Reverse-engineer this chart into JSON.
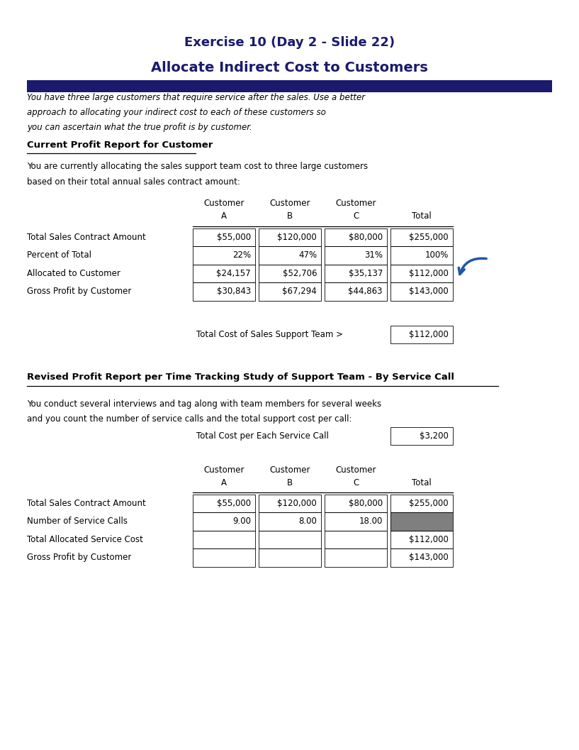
{
  "title_line1": "Exercise 10 (Day 2 - Slide 22)",
  "title_line2": "Allocate Indirect Cost to Customers",
  "title_color": "#1a1a6e",
  "blue_bar_color": "#1a1a6e",
  "intro_text_lines": [
    "You have three large customers that require service after the sales. Use a better",
    "approach to allocating your indirect cost to each of these customers so",
    "you can ascertain what the true profit is by customer."
  ],
  "section1_header": "Current Profit Report for Customer",
  "section1_body_lines": [
    "You are currently allocating the sales support team cost to three large customers",
    "based on their total annual sales contract amount:"
  ],
  "col_headers_top": [
    "Customer",
    "Customer",
    "Customer",
    ""
  ],
  "col_headers_bot": [
    "A",
    "B",
    "C",
    "Total"
  ],
  "table1_rows": [
    [
      "Total Sales Contract Amount",
      "$55,000",
      "$120,000",
      "$80,000",
      "$255,000"
    ],
    [
      "Percent of Total",
      "22%",
      "47%",
      "31%",
      "100%"
    ],
    [
      "Allocated to Customer",
      "$24,157",
      "$52,706",
      "$35,137",
      "$112,000"
    ],
    [
      "Gross Profit by Customer",
      "$30,843",
      "$67,294",
      "$44,863",
      "$143,000"
    ]
  ],
  "total_cost_label": "Total Cost of Sales Support Team >",
  "total_cost_value": "$112,000",
  "section2_header": "Revised Profit Report per Time Tracking Study of Support Team - By Service Call",
  "section2_body_lines": [
    "You conduct several interviews and tag along with team members for several weeks",
    "and you count the number of service calls and the total support cost per call:"
  ],
  "cost_per_call_label": "Total Cost per Each Service Call",
  "cost_per_call_value": "$3,200",
  "table2_rows": [
    [
      "Total Sales Contract Amount",
      "$55,000",
      "$120,000",
      "$80,000",
      "$255,000"
    ],
    [
      "Number of Service Calls",
      "9.00",
      "8.00",
      "18.00",
      ""
    ],
    [
      "Total Allocated Service Cost",
      "",
      "",
      "",
      "$112,000"
    ],
    [
      "Gross Profit by Customer",
      "",
      "",
      "",
      "$143,000"
    ]
  ],
  "table2_gray_cell": [
    1,
    4
  ],
  "bg_color": "#ffffff",
  "text_color": "#000000",
  "border_color": "#000000",
  "gray_color": "#7f7f7f"
}
